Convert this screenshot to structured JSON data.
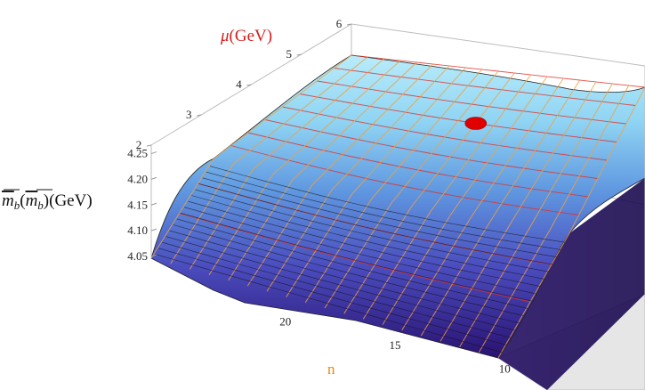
{
  "chart_data": {
    "type": "surface3d",
    "title": "",
    "axes": {
      "mu": {
        "label_symbol": "μ",
        "label_unit": "(GeV)",
        "range": [
          2,
          6
        ],
        "ticks": [
          "2",
          "3",
          "4",
          "5",
          "6"
        ],
        "color": "#d42020"
      },
      "n": {
        "label": "n",
        "range": [
          6,
          24
        ],
        "ticks": [
          "20",
          "15",
          "10"
        ],
        "color": "#f08a00"
      },
      "z": {
        "label_main": "m",
        "label_sub": "b",
        "label_unit": "(GeV)",
        "range": [
          4.05,
          4.27
        ],
        "ticks": [
          "4.05",
          "4.10",
          "4.15",
          "4.20",
          "4.25"
        ]
      }
    },
    "surface": {
      "description_values": [
        {
          "mu": 2.0,
          "n": 24,
          "z": 4.05
        },
        {
          "mu": 2.0,
          "n": 15,
          "z": 4.05
        },
        {
          "mu": 2.0,
          "n": 6,
          "z": 4.05
        },
        {
          "mu": 2.5,
          "n": 24,
          "z": 4.205
        },
        {
          "mu": 2.5,
          "n": 15,
          "z": 4.18
        },
        {
          "mu": 2.5,
          "n": 6,
          "z": 4.16
        },
        {
          "mu": 3.0,
          "n": 24,
          "z": 4.235
        },
        {
          "mu": 3.0,
          "n": 15,
          "z": 4.215
        },
        {
          "mu": 3.0,
          "n": 6,
          "z": 4.2
        },
        {
          "mu": 4.0,
          "n": 24,
          "z": 4.245
        },
        {
          "mu": 4.0,
          "n": 15,
          "z": 4.225
        },
        {
          "mu": 4.0,
          "n": 6,
          "z": 4.21
        },
        {
          "mu": 6.0,
          "n": 24,
          "z": 4.243
        },
        {
          "mu": 6.0,
          "n": 15,
          "z": 4.223
        },
        {
          "mu": 6.0,
          "n": 6,
          "z": 4.208
        }
      ],
      "colors": {
        "low": "#2a1070",
        "mid": "#4a60c8",
        "high": "#a8e4f8"
      },
      "mu_lines_color": "#e0302a",
      "n_lines_color": "#f0a040"
    },
    "highlight_point": {
      "mu": 4.5,
      "n": 14,
      "z": 4.245,
      "color": "#e00000"
    }
  }
}
